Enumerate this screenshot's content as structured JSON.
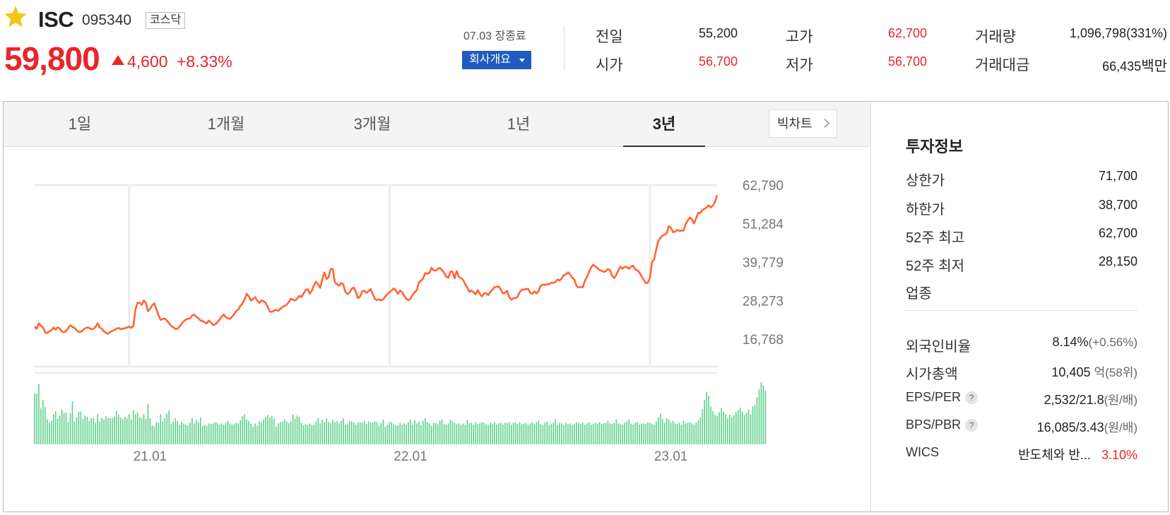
{
  "stock": {
    "name": "ISC",
    "code": "095340",
    "market": "코스닥",
    "price": "59,800",
    "change": "4,600",
    "change_rate": "+8.33%"
  },
  "session": {
    "close_text": "07.03 장종료",
    "overview_label": "회사개요"
  },
  "stats": {
    "prev_label": "전일",
    "prev_value": "55,200",
    "open_label": "시가",
    "open_value": "56,700",
    "high_label": "고가",
    "high_value": "62,700",
    "low_label": "저가",
    "low_value": "56,700",
    "volume_label": "거래량",
    "volume_value": "1,096,798(331%)",
    "amount_label": "거래대금",
    "amount_value": "66,435",
    "amount_unit": "백만"
  },
  "tabs": [
    "1일",
    "1개월",
    "3개월",
    "1년",
    "3년"
  ],
  "active_tab": "3년",
  "bigchart_label": "빅차트",
  "colors": {
    "up": "#e8262a",
    "down": "#2a57d6",
    "line": "#ff6535",
    "volume": "#5fd08b"
  },
  "chart_data": {
    "type": "line",
    "y_ticks": [
      "62,790",
      "51,284",
      "39,779",
      "28,273",
      "16,768"
    ],
    "ylim": [
      16768,
      62790
    ],
    "x_ticks": [
      "21.01",
      "22.01",
      "23.01"
    ],
    "series": [
      {
        "values": [
          20500,
          19800,
          21500,
          20700,
          20300,
          18700,
          18600,
          19100,
          19500,
          20200,
          19600,
          20300,
          19900,
          19000,
          18800,
          19200,
          20100,
          20900,
          20400,
          20100,
          19400,
          18900,
          18900,
          19400,
          20000,
          20200,
          20100,
          19700,
          19800,
          20400,
          21500,
          20200,
          19900,
          19100,
          18600,
          18400,
          18900,
          19200,
          19500,
          19900,
          20100,
          19700,
          19900,
          20000,
          20200,
          20500,
          20100,
          20600,
          25600,
          27600,
          27600,
          27000,
          28300,
          27600,
          25100,
          25800,
          26800,
          27500,
          25700,
          23800,
          22500,
          22800,
          22900,
          22300,
          21500,
          20700,
          20300,
          19800,
          19800,
          20500,
          21300,
          22100,
          22600,
          22800,
          23000,
          23800,
          24100,
          23400,
          23000,
          22300,
          22200,
          21700,
          21500,
          22300,
          21700,
          21000,
          21200,
          21700,
          22600,
          23400,
          24100,
          23400,
          23000,
          22800,
          23400,
          24200,
          25100,
          25600,
          26700,
          27400,
          28700,
          30300,
          29500,
          28300,
          28700,
          29300,
          28300,
          27600,
          28300,
          28100,
          27600,
          26400,
          25000,
          24900,
          25300,
          25500,
          25200,
          25800,
          26400,
          26700,
          27000,
          27800,
          28800,
          28600,
          28300,
          28800,
          29700,
          29300,
          30300,
          31400,
          31700,
          30300,
          31200,
          32800,
          33900,
          33200,
          32100,
          34600,
          36700,
          34700,
          35300,
          37700,
          37700,
          33700,
          33200,
          32700,
          33500,
          33100,
          30800,
          30200,
          30700,
          31800,
          32200,
          30800,
          29000,
          29500,
          31100,
          31200,
          30600,
          31100,
          31700,
          30300,
          28800,
          28400,
          28700,
          28300,
          28700,
          29500,
          30200,
          30800,
          31300,
          31900,
          31300,
          30300,
          31300,
          30800,
          29700,
          28800,
          28400,
          28800,
          30000,
          30800,
          31400,
          33700,
          34200,
          34900,
          36500,
          36300,
          36600,
          38100,
          37300,
          37200,
          37800,
          38000,
          37400,
          36600,
          35400,
          35100,
          36900,
          36900,
          34900,
          37100,
          35400,
          35000,
          34500,
          33200,
          32200,
          30900,
          31300,
          30800,
          30100,
          31400,
          30300,
          29500,
          30400,
          30500,
          29900,
          30800,
          31500,
          32300,
          32400,
          32500,
          31500,
          30400,
          30600,
          31200,
          29400,
          28500,
          29000,
          29000,
          29400,
          30800,
          31500,
          31600,
          31700,
          31800,
          30600,
          30300,
          31000,
          30400,
          31100,
          32800,
          33000,
          33000,
          33100,
          33200,
          33600,
          33600,
          33800,
          34600,
          34300,
          34900,
          35900,
          36100,
          36700,
          36100,
          35100,
          34600,
          32700,
          32200,
          32400,
          32200,
          34100,
          35300,
          36800,
          38200,
          39000,
          38500,
          38000,
          37400,
          37200,
          36800,
          37100,
          37700,
          37400,
          35600,
          35000,
          36000,
          37400,
          38400,
          37800,
          38400,
          38300,
          37800,
          38400,
          38700,
          37600,
          37300,
          36700,
          35600,
          34500,
          33500,
          33600,
          35100,
          39900,
          40500,
          43500,
          46100,
          47000,
          47700,
          48000,
          48400,
          50500,
          50000,
          48700,
          48900,
          49400,
          49100,
          49200,
          49200,
          51100,
          52200,
          53100,
          52600,
          51300,
          52900,
          54500,
          54400,
          55400,
          55700,
          56100,
          56700,
          56100,
          56700,
          57700,
          59800
        ]
      },
      {
        "name": "volume",
        "values": [
          78,
          78,
          92,
          55,
          68,
          57,
          38,
          33,
          36,
          46,
          51,
          39,
          44,
          53,
          48,
          49,
          34,
          48,
          66,
          35,
          41,
          50,
          50,
          39,
          44,
          42,
          36,
          40,
          40,
          33,
          46,
          35,
          40,
          38,
          43,
          40,
          40,
          40,
          42,
          51,
          45,
          41,
          38,
          42,
          40,
          46,
          38,
          52,
          46,
          49,
          41,
          40,
          46,
          39,
          62,
          40,
          29,
          27,
          34,
          33,
          46,
          35,
          40,
          47,
          52,
          31,
          35,
          40,
          35,
          30,
          35,
          32,
          30,
          29,
          33,
          40,
          32,
          37,
          34,
          41,
          28,
          30,
          28,
          32,
          31,
          32,
          34,
          33,
          30,
          32,
          30,
          33,
          36,
          32,
          30,
          31,
          33,
          32,
          37,
          43,
          46,
          38,
          36,
          32,
          27,
          32,
          28,
          35,
          33,
          38,
          42,
          45,
          41,
          43,
          39,
          27,
          32,
          34,
          35,
          38,
          35,
          32,
          35,
          46,
          39,
          44,
          42,
          33,
          29,
          31,
          30,
          32,
          30,
          30,
          35,
          40,
          32,
          38,
          34,
          40,
          34,
          32,
          37,
          34,
          35,
          32,
          36,
          40,
          30,
          31,
          35,
          35,
          33,
          30,
          33,
          34,
          33,
          36,
          31,
          35,
          33,
          33,
          35,
          34,
          28,
          33,
          38,
          27,
          30,
          34,
          34,
          31,
          29,
          29,
          33,
          30,
          32,
          30,
          34,
          38,
          30,
          37,
          32,
          35,
          30,
          36,
          40,
          34,
          32,
          28,
          33,
          32,
          31,
          36,
          38,
          31,
          30,
          32,
          38,
          35,
          33,
          31,
          32,
          30,
          32,
          30,
          37,
          32,
          33,
          30,
          34,
          31,
          32,
          34,
          33,
          31,
          30,
          33,
          31,
          34,
          30,
          32,
          33,
          30,
          33,
          32,
          34,
          30,
          33,
          33,
          31,
          34,
          31,
          32,
          33,
          30,
          32,
          34,
          31,
          34,
          36,
          31,
          29,
          33,
          35,
          30,
          31,
          33,
          38,
          30,
          33,
          32,
          29,
          33,
          31,
          32,
          30,
          31,
          34,
          33,
          31,
          33,
          30,
          32,
          34,
          30,
          31,
          33,
          31,
          34,
          31,
          32,
          33,
          36,
          32,
          31,
          33,
          38,
          32,
          31,
          30,
          33,
          35,
          38,
          31,
          30,
          33,
          34,
          30,
          32,
          32,
          31,
          34,
          33,
          31,
          30,
          35,
          41,
          47,
          39,
          33,
          40,
          38,
          33,
          36,
          32,
          31,
          33,
          30,
          36,
          32,
          33,
          34,
          32,
          30,
          33,
          37,
          41,
          54,
          68,
          80,
          74,
          58,
          51,
          45,
          43,
          49,
          55,
          50,
          46,
          40,
          45,
          41,
          45,
          49,
          52,
          56,
          50,
          45,
          48,
          53,
          46,
          58,
          60,
          72,
          84,
          95,
          90,
          82
        ]
      }
    ]
  },
  "info": {
    "title": "투자정보",
    "rows": [
      {
        "label": "상한가",
        "value": "71,700"
      },
      {
        "label": "하한가",
        "value": "38,700"
      },
      {
        "label": "52주 최고",
        "value": "62,700"
      },
      {
        "label": "52주 최저",
        "value": "28,150"
      },
      {
        "label": "업종",
        "value": ""
      },
      {
        "label": "외국인비율",
        "value": "8.14%",
        "sub": "(+0.56%)"
      },
      {
        "label": "시가총액",
        "value": "10,405",
        "sub": "억(58위)"
      },
      {
        "label": "EPS/PER",
        "value": "2,532/21.8",
        "sub": "(원/배)"
      },
      {
        "label": "BPS/PBR",
        "value": "16,085/3.43",
        "sub": "(원/배)"
      },
      {
        "label": "WICS",
        "value": "반도체와 반...",
        "sub": "3.10%"
      }
    ]
  }
}
